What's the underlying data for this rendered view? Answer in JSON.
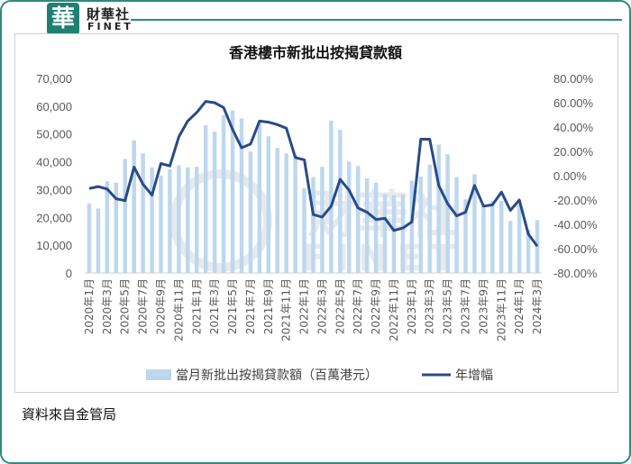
{
  "brand": {
    "badge_char": "華",
    "name_cn": "財華社",
    "name_en": "FINET"
  },
  "chart_data": {
    "type": "bar+line",
    "title": "香港樓市新批出按揭貸款額",
    "categories": [
      "2020年1月",
      "2020年2月",
      "2020年3月",
      "2020年4月",
      "2020年5月",
      "2020年6月",
      "2020年7月",
      "2020年8月",
      "2020年9月",
      "2020年10月",
      "2020年11月",
      "2020年12月",
      "2021年1月",
      "2021年2月",
      "2021年3月",
      "2021年4月",
      "2021年5月",
      "2021年6月",
      "2021年7月",
      "2021年8月",
      "2021年9月",
      "2021年10月",
      "2021年11月",
      "2021年12月",
      "2022年1月",
      "2022年2月",
      "2022年3月",
      "2022年4月",
      "2022年5月",
      "2022年6月",
      "2022年7月",
      "2022年8月",
      "2022年9月",
      "2022年10月",
      "2022年11月",
      "2022年12月",
      "2023年1月",
      "2023年2月",
      "2023年3月",
      "2023年4月",
      "2023年5月",
      "2023年6月",
      "2023年7月",
      "2023年8月",
      "2023年9月",
      "2023年10月",
      "2023年11月",
      "2023年12月",
      "2024年1月",
      "2024年2月",
      "2024年3月"
    ],
    "tick_labels": [
      "2020年1月",
      "2020年3月",
      "2020年5月",
      "2020年7月",
      "2020年9月",
      "2020年11月",
      "2021年1月",
      "2021年3月",
      "2021年5月",
      "2021年7月",
      "2021年9月",
      "2021年11月",
      "2022年1月",
      "2022年3月",
      "2022年5月",
      "2022年7月",
      "2022年9月",
      "2022年11月",
      "2023年1月",
      "2023年3月",
      "2023年5月",
      "2023年7月",
      "2023年9月",
      "2023年11月",
      "2024年1月",
      "2024年3月"
    ],
    "series": [
      {
        "name": "當月新批出按揭貸款額（百萬港元）",
        "type": "bar",
        "axis": "left",
        "color": "#bdd7ee",
        "values": [
          25000,
          23200,
          33000,
          32500,
          41000,
          47700,
          43000,
          38000,
          35000,
          37300,
          38700,
          38000,
          38200,
          53200,
          50800,
          56800,
          58500,
          55600,
          43800,
          54300,
          49200,
          45000,
          43000,
          42500,
          30500,
          34500,
          38200,
          54800,
          51500,
          40000,
          38500,
          34000,
          32500,
          28300,
          28000,
          28200,
          33200,
          34700,
          39000,
          46200,
          42700,
          34500,
          26500,
          35500,
          24200,
          26000,
          26000,
          18700,
          24700,
          15500,
          19000
        ]
      },
      {
        "name": "年增幅",
        "type": "line",
        "axis": "right",
        "color": "#284b88",
        "values": [
          -0.105,
          -0.09,
          -0.11,
          -0.19,
          -0.205,
          0.07,
          -0.07,
          -0.16,
          0.1,
          0.08,
          0.32,
          0.45,
          0.52,
          0.61,
          0.6,
          0.56,
          0.38,
          0.23,
          0.26,
          0.45,
          0.44,
          0.42,
          0.39,
          0.15,
          0.13,
          -0.32,
          -0.34,
          -0.25,
          -0.03,
          -0.12,
          -0.265,
          -0.3,
          -0.36,
          -0.35,
          -0.45,
          -0.43,
          -0.38,
          0.3,
          0.3,
          -0.08,
          -0.23,
          -0.33,
          -0.3,
          -0.08,
          -0.25,
          -0.24,
          -0.135,
          -0.285,
          -0.2,
          -0.48,
          -0.58
        ]
      }
    ],
    "yleft": {
      "lim": [
        0,
        70000
      ],
      "ticks": [
        "0",
        "10,000",
        "20,000",
        "30,000",
        "40,000",
        "50,000",
        "60,000",
        "70,000"
      ]
    },
    "yright": {
      "lim": [
        -0.8,
        0.8
      ],
      "ticks": [
        "-80.00%",
        "-60.00%",
        "-40.00%",
        "-20.00%",
        "0.00%",
        "20.00%",
        "40.00%",
        "60.00%",
        "80.00%"
      ]
    },
    "grid": false,
    "legend": "bottom",
    "watermark": "財華社 FINET"
  },
  "source": "資料來自金管局"
}
